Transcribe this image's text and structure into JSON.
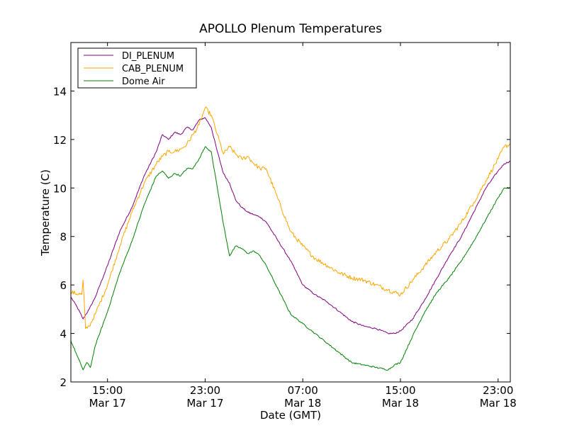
{
  "chart_data": {
    "type": "line",
    "title": "APOLLO Plenum Temperatures",
    "xlabel": "Date (GMT)",
    "ylabel": "Temperature (C)",
    "x_unit": "hours since Mar 17 12:00 GMT",
    "xlim": [
      0,
      36
    ],
    "ylim": [
      2,
      16
    ],
    "grid": false,
    "legend_position": "top-left",
    "x_ticks": [
      {
        "value": 3,
        "time": "15:00",
        "date": "Mar 17"
      },
      {
        "value": 11,
        "time": "23:00",
        "date": "Mar 17"
      },
      {
        "value": 19,
        "time": "07:00",
        "date": "Mar 18"
      },
      {
        "value": 27,
        "time": "15:00",
        "date": "Mar 18"
      },
      {
        "value": 35,
        "time": "23:00",
        "date": "Mar 18"
      }
    ],
    "y_ticks": [
      2,
      4,
      6,
      8,
      10,
      12,
      14
    ],
    "series": [
      {
        "name": "DI_PLENUM",
        "color": "#800080",
        "x": [
          0,
          0.5,
          1,
          1.5,
          2,
          3,
          4,
          5,
          6,
          7,
          7.5,
          8,
          8.5,
          9,
          9.5,
          10,
          10.5,
          11,
          11.5,
          12,
          12.5,
          13,
          13.5,
          14,
          14.5,
          15,
          15.5,
          16,
          17,
          18,
          19,
          20,
          21,
          22,
          23,
          24,
          25,
          26,
          26.5,
          27,
          28,
          29,
          30,
          31,
          32,
          33,
          34,
          35,
          35.5,
          36
        ],
        "values": [
          5.5,
          5.1,
          4.6,
          5.0,
          5.5,
          6.8,
          8.2,
          9.2,
          10.5,
          11.5,
          12.2,
          12.0,
          12.3,
          12.2,
          12.5,
          12.4,
          12.8,
          12.9,
          12.5,
          11.5,
          10.6,
          10.2,
          9.5,
          9.2,
          9.0,
          8.9,
          8.8,
          8.6,
          7.8,
          7.0,
          6.0,
          5.6,
          5.3,
          4.9,
          4.5,
          4.3,
          4.2,
          4.0,
          4.0,
          4.1,
          4.6,
          5.4,
          6.3,
          7.2,
          8.0,
          9.0,
          10.0,
          10.7,
          11.0,
          11.1
        ]
      },
      {
        "name": "CAB_PLENUM",
        "color": "#FFA500",
        "x": [
          0,
          0.9,
          1,
          1.2,
          1.5,
          2,
          3,
          4,
          5,
          6,
          7,
          7.5,
          8,
          8.5,
          9,
          9.5,
          10,
          10.5,
          11,
          11.5,
          12,
          12.5,
          13,
          13.5,
          14,
          14.5,
          15,
          15.5,
          16,
          17,
          18,
          19,
          20,
          21,
          22,
          23,
          24,
          25,
          26,
          27,
          28,
          29,
          30,
          31,
          32,
          33,
          34,
          35,
          35.5,
          36
        ],
        "values": [
          5.7,
          5.6,
          6.2,
          4.2,
          4.3,
          4.8,
          6.0,
          7.6,
          9.0,
          10.2,
          11.0,
          11.3,
          11.5,
          11.5,
          11.6,
          11.8,
          12.2,
          12.6,
          13.3,
          13.0,
          12.2,
          11.4,
          11.7,
          11.4,
          11.2,
          11.3,
          11.0,
          10.8,
          10.8,
          9.5,
          8.2,
          7.6,
          7.1,
          6.8,
          6.5,
          6.3,
          6.2,
          6.0,
          5.8,
          5.6,
          6.2,
          6.8,
          7.4,
          7.9,
          8.6,
          9.4,
          10.3,
          11.2,
          11.7,
          11.8
        ]
      },
      {
        "name": "Dome Air",
        "color": "#008000",
        "x": [
          0,
          0.5,
          1,
          1.3,
          1.6,
          2,
          3,
          4,
          5,
          6,
          7,
          7.5,
          8,
          8.5,
          9,
          9.5,
          10,
          10.5,
          11,
          11.5,
          12,
          12.5,
          13,
          13.5,
          14,
          14.5,
          15,
          15.5,
          16,
          17,
          18,
          19,
          20,
          21,
          22,
          23,
          24,
          25,
          26,
          26.5,
          27,
          28,
          29,
          30,
          31,
          32,
          33,
          34,
          35,
          35.5,
          36
        ],
        "values": [
          3.7,
          3.1,
          2.5,
          2.8,
          2.6,
          3.5,
          4.9,
          6.5,
          7.8,
          9.3,
          10.5,
          10.7,
          10.4,
          10.6,
          10.5,
          10.8,
          10.8,
          11.2,
          11.7,
          11.5,
          10.0,
          8.5,
          7.2,
          7.6,
          7.5,
          7.3,
          7.4,
          7.2,
          6.8,
          5.8,
          4.8,
          4.4,
          4.0,
          3.6,
          3.2,
          2.8,
          2.7,
          2.6,
          2.5,
          2.7,
          2.8,
          3.9,
          4.9,
          5.7,
          6.3,
          7.0,
          7.8,
          8.7,
          9.6,
          10.0,
          10.0
        ]
      }
    ]
  }
}
